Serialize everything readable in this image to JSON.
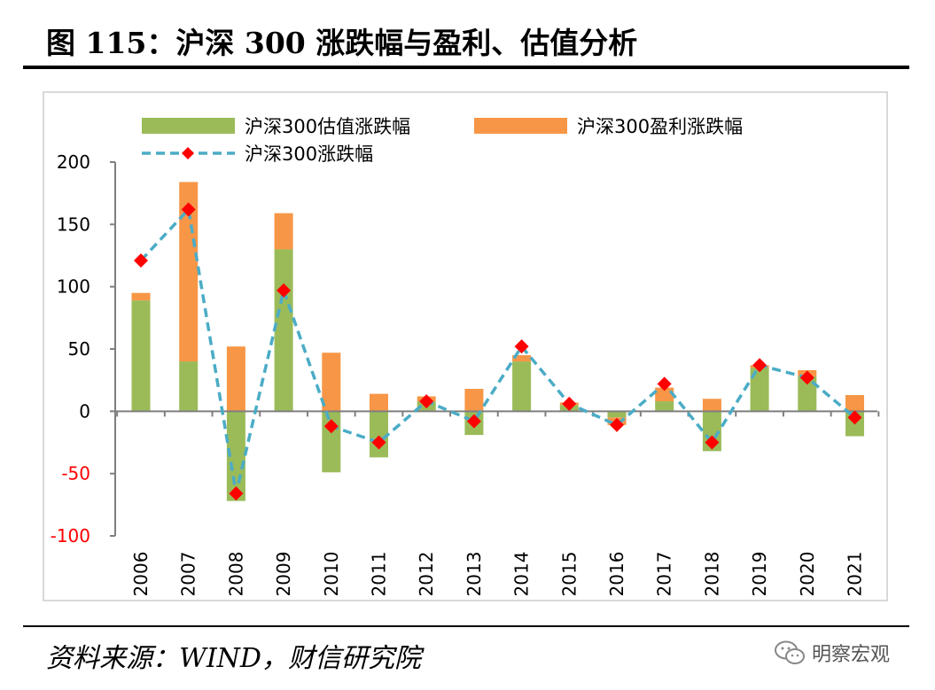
{
  "figure": {
    "title": "图 115：沪深 300 涨跌幅与盈利、估值分析",
    "source": "资料来源：WIND，财信研究院",
    "watermark": "明察宏观"
  },
  "colors": {
    "valuation": "#9bbb59",
    "earnings": "#f79646",
    "index_line": "#4bacc6",
    "index_marker": "#ff0000",
    "negative_tick": "#ff0000"
  },
  "chart_data": {
    "type": "bar",
    "stacked": true,
    "categories": [
      "2006",
      "2007",
      "2008",
      "2009",
      "2010",
      "2011",
      "2012",
      "2013",
      "2014",
      "2015",
      "2016",
      "2017",
      "2018",
      "2019",
      "2020",
      "2021"
    ],
    "series": [
      {
        "name": "沪深300估值涨跌幅",
        "kind": "bar",
        "color": "#9bbb59",
        "values": [
          89,
          40,
          -72,
          130,
          -49,
          -37,
          8,
          -19,
          40,
          5,
          -5,
          8,
          -32,
          35,
          28,
          -20
        ]
      },
      {
        "name": "沪深300盈利涨跌幅",
        "kind": "bar",
        "color": "#f79646",
        "values": [
          6,
          144,
          52,
          29,
          47,
          14,
          4,
          18,
          5,
          2,
          -6,
          11,
          10,
          2,
          5,
          13
        ]
      },
      {
        "name": "沪深300涨跌幅",
        "kind": "line",
        "color": "#4bacc6",
        "marker_color": "#ff0000",
        "values": [
          121,
          162,
          -66,
          97,
          -12,
          -25,
          8,
          -8,
          52,
          6,
          -11,
          22,
          -25,
          37,
          27,
          -5
        ]
      }
    ],
    "y_ticks": [
      200,
      150,
      100,
      50,
      0,
      -50,
      -100
    ],
    "ylim": [
      -100,
      200
    ],
    "legend_position": "top",
    "grid": false
  }
}
